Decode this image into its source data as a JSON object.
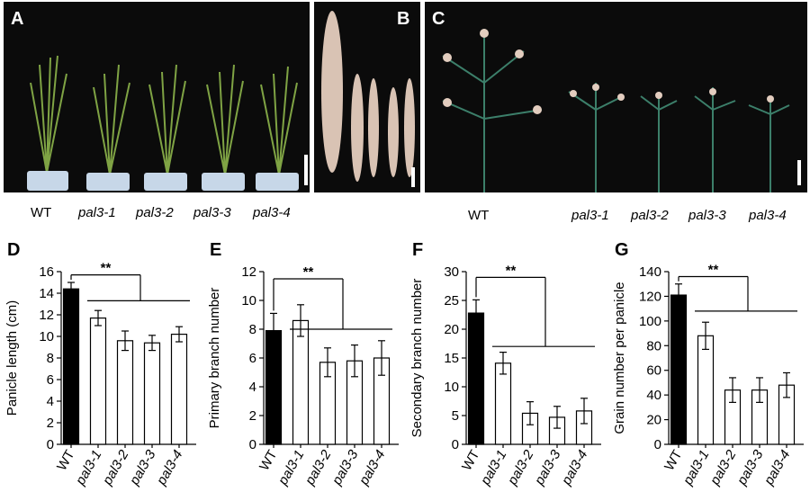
{
  "photos": {
    "A": {
      "letter": "A",
      "genotypes": [
        "WT",
        "pal3-1",
        "pal3-2",
        "pal3-3",
        "pal3-4"
      ]
    },
    "B": {
      "letter": "B"
    },
    "C": {
      "letter": "C",
      "genotypes": [
        "WT",
        "pal3-1",
        "pal3-2",
        "pal3-3",
        "pal3-4"
      ]
    }
  },
  "significance_label": "**",
  "chart_data": [
    {
      "panel": "D",
      "type": "bar",
      "ylabel": "Panicle length (cm)",
      "categories": [
        "WT",
        "pal3-1",
        "pal3-2",
        "pal3-3",
        "pal3-4"
      ],
      "values": [
        14.4,
        11.7,
        9.6,
        9.4,
        10.2
      ],
      "errors": [
        0.6,
        0.7,
        0.9,
        0.7,
        0.7
      ],
      "ylim": [
        0,
        16
      ],
      "yticks": [
        0,
        2,
        4,
        6,
        8,
        10,
        12,
        14,
        16
      ],
      "bar_colors": [
        "#000000",
        "#ffffff",
        "#ffffff",
        "#ffffff",
        "#ffffff"
      ],
      "bracket_level": 15.7,
      "mutant_line_level": 13.3
    },
    {
      "panel": "E",
      "type": "bar",
      "ylabel": "Primary branch number",
      "categories": [
        "WT",
        "pal3-1",
        "pal3-2",
        "pal3-3",
        "pal3-4"
      ],
      "values": [
        7.9,
        8.6,
        5.7,
        5.8,
        6.0
      ],
      "errors": [
        1.2,
        1.1,
        1.0,
        1.1,
        1.2
      ],
      "ylim": [
        0,
        12
      ],
      "yticks": [
        0,
        2,
        4,
        6,
        8,
        10,
        12
      ],
      "bar_colors": [
        "#000000",
        "#ffffff",
        "#ffffff",
        "#ffffff",
        "#ffffff"
      ],
      "bracket_level": 11.5,
      "mutant_line_level": 8.0
    },
    {
      "panel": "F",
      "type": "bar",
      "ylabel": "Secondary branch number",
      "categories": [
        "WT",
        "pal3-1",
        "pal3-2",
        "pal3-3",
        "pal3-4"
      ],
      "values": [
        22.8,
        14.1,
        5.4,
        4.7,
        5.8
      ],
      "errors": [
        2.3,
        1.9,
        2.0,
        1.9,
        2.2
      ],
      "ylim": [
        0,
        30
      ],
      "yticks": [
        0,
        5,
        10,
        15,
        20,
        25,
        30
      ],
      "bar_colors": [
        "#000000",
        "#ffffff",
        "#ffffff",
        "#ffffff",
        "#ffffff"
      ],
      "bracket_level": 29,
      "mutant_line_level": 17
    },
    {
      "panel": "G",
      "type": "bar",
      "ylabel": "Grain number per panicle",
      "categories": [
        "WT",
        "pal3-1",
        "pal3-2",
        "pal3-3",
        "pal3-4"
      ],
      "values": [
        121,
        88,
        44,
        44,
        48
      ],
      "errors": [
        9,
        11,
        10,
        10,
        10
      ],
      "ylim": [
        0,
        140
      ],
      "yticks": [
        0,
        20,
        40,
        60,
        80,
        100,
        120,
        140
      ],
      "bar_colors": [
        "#000000",
        "#ffffff",
        "#ffffff",
        "#ffffff",
        "#ffffff"
      ],
      "bracket_level": 136,
      "mutant_line_level": 108
    }
  ]
}
